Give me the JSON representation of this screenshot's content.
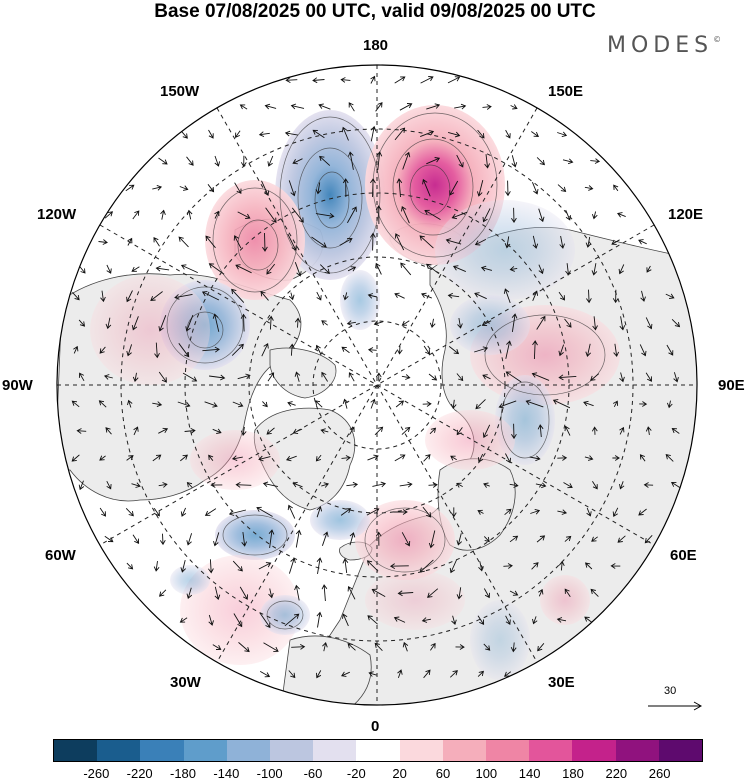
{
  "title": "Base 07/08/2025 00 UTC, valid 09/08/2025 00 UTC",
  "brand": "MODES",
  "brand_mark": "©",
  "longitude_labels": {
    "lon_180": "180",
    "lon_150e": "150E",
    "lon_120e": "120E",
    "lon_90e": "90E",
    "lon_60e": "60E",
    "lon_30e": "30E",
    "lon_0": "0",
    "lon_30w": "30W",
    "lon_60w": "60W",
    "lon_90w": "90W",
    "lon_120w": "120W",
    "lon_150w": "150W"
  },
  "reference_vector": "30",
  "colorbar": {
    "colors": [
      "#0d3d5e",
      "#1a5d8e",
      "#3a80b8",
      "#5f9dcb",
      "#8fb2d8",
      "#bcc6e0",
      "#e3e0ef",
      "#ffffff",
      "#fbd9dd",
      "#f5aebb",
      "#ef85a5",
      "#e3559b",
      "#c4228b",
      "#90127e",
      "#5e0a6e"
    ],
    "ticks": [
      "-260",
      "-220",
      "-180",
      "-140",
      "-100",
      "-60",
      "-20",
      "20",
      "60",
      "100",
      "140",
      "180",
      "220",
      "260"
    ]
  },
  "anomaly_centres": [
    {
      "sign": "negative",
      "value": -150
    },
    {
      "sign": "positive",
      "value": 180
    },
    {
      "sign": "positive",
      "value": 110
    },
    {
      "sign": "negative",
      "value": -120
    },
    {
      "sign": "positive",
      "value": 70
    },
    {
      "sign": "negative",
      "value": -90
    },
    {
      "sign": "negative",
      "value": -100
    },
    {
      "sign": "positive",
      "value": 60
    },
    {
      "sign": "negative",
      "value": -70
    }
  ]
}
